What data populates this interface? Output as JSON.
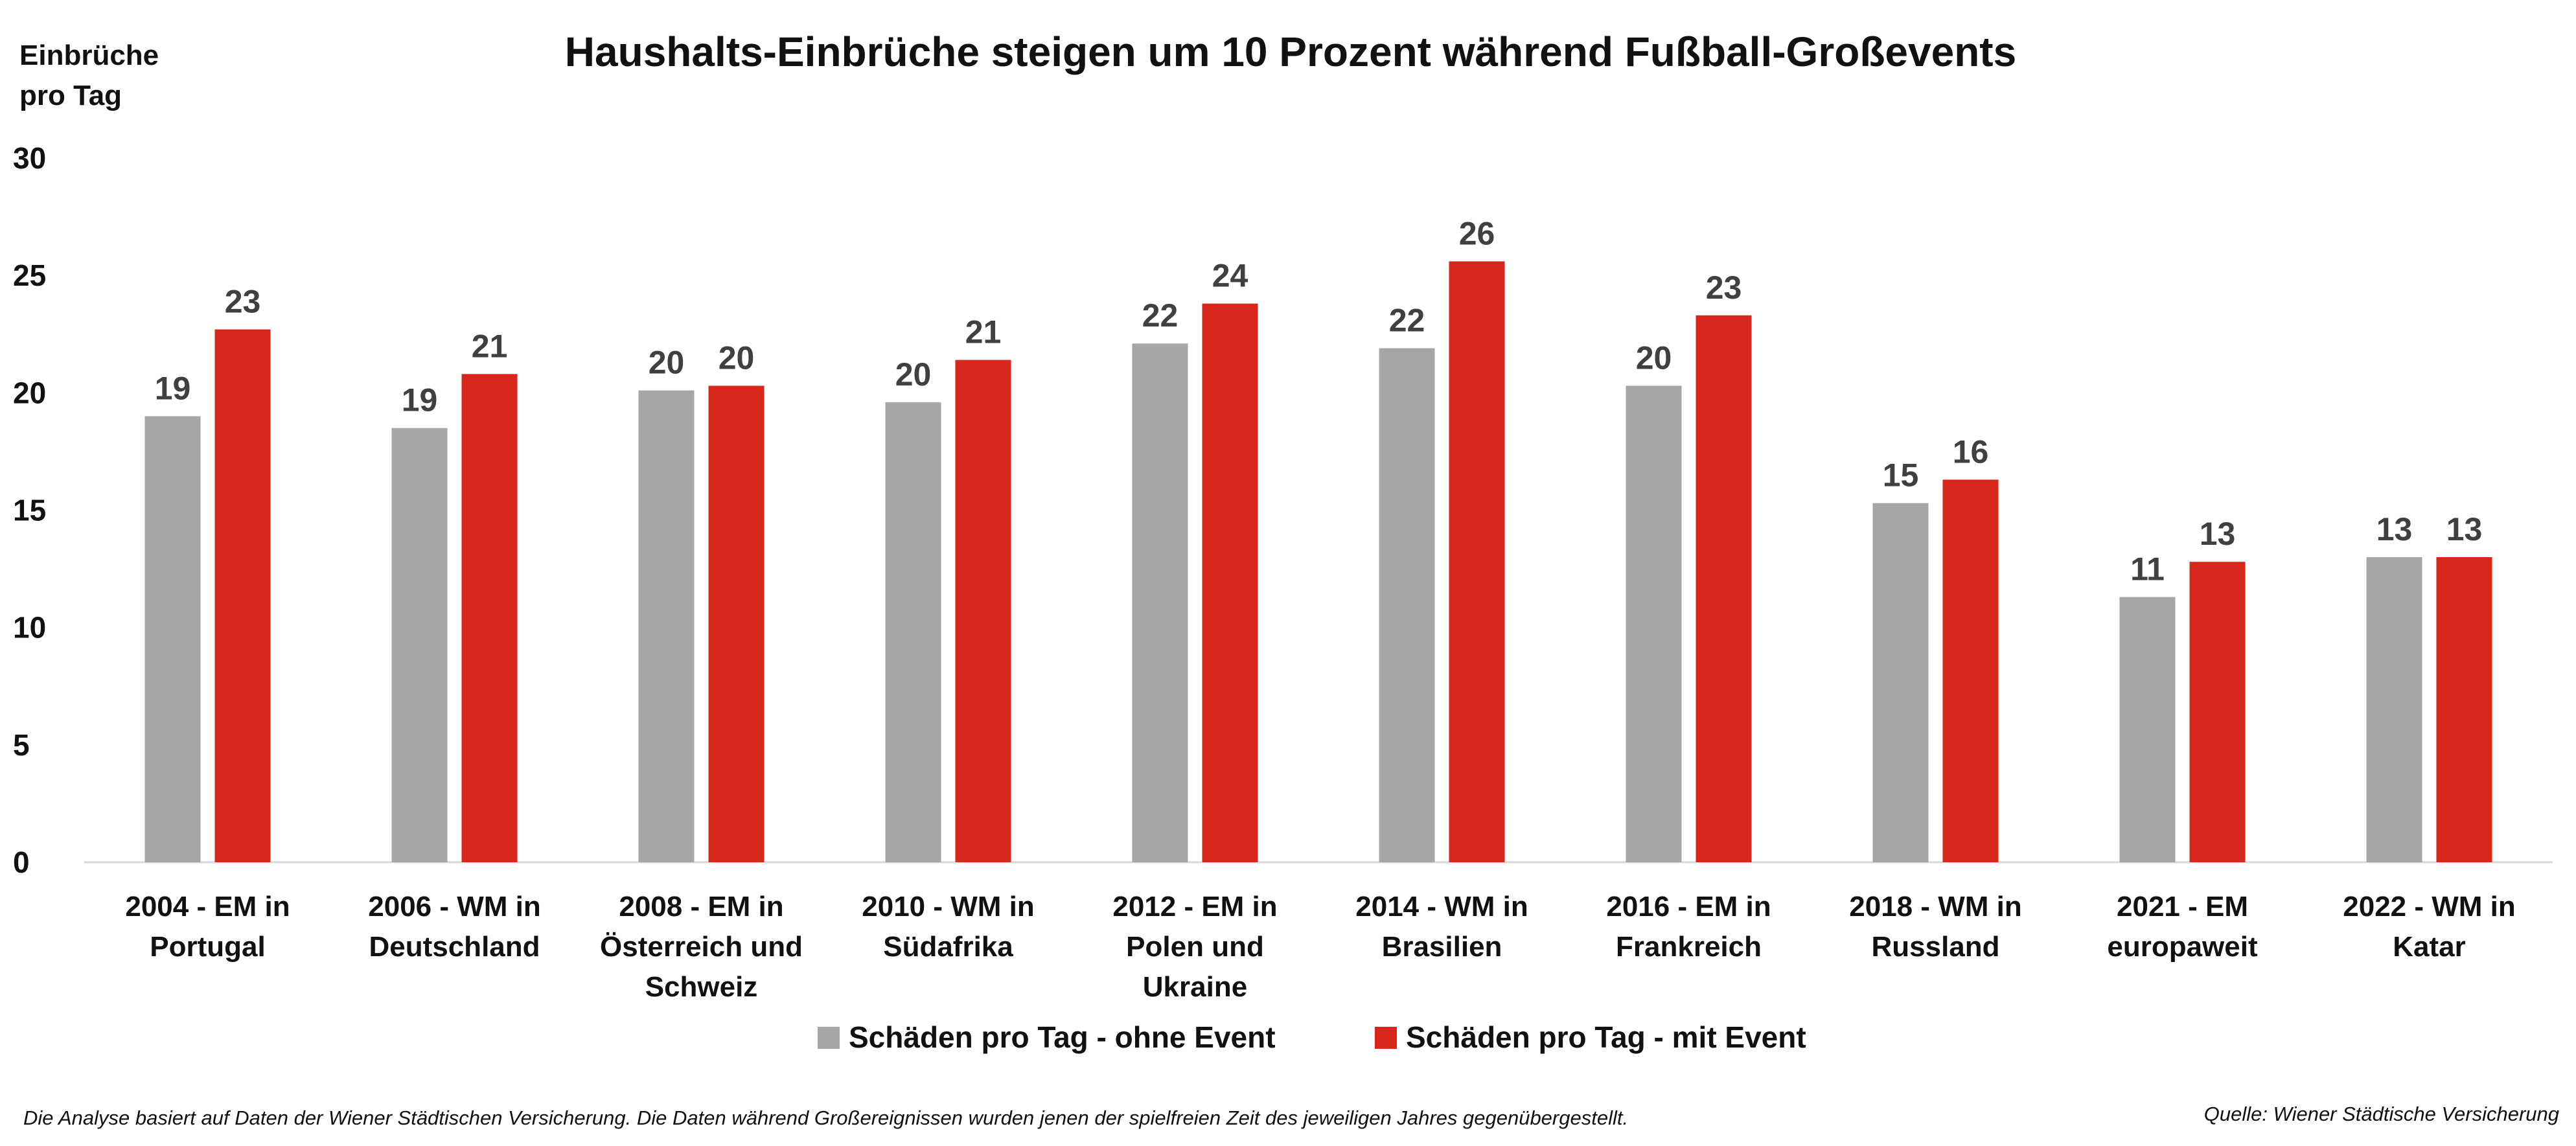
{
  "chart_data": {
    "type": "bar",
    "title": "Haushalts-Einbrüche steigen um 10 Prozent während Fußball-Großevents",
    "ylabel_lines": [
      "Einbrüche",
      "pro Tag"
    ],
    "xlabel": "",
    "ylim": [
      0,
      30
    ],
    "yticks": [
      0,
      5,
      10,
      15,
      20,
      25,
      30
    ],
    "grid": false,
    "legend_position": "bottom",
    "categories": [
      [
        "2004 - EM in",
        "Portugal"
      ],
      [
        "2006 - WM in",
        "Deutschland"
      ],
      [
        "2008 - EM in",
        "Österreich und",
        "Schweiz"
      ],
      [
        "2010 - WM in",
        "Südafrika"
      ],
      [
        "2012 - EM in",
        "Polen und",
        "Ukraine"
      ],
      [
        "2014 - WM in",
        "Brasilien"
      ],
      [
        "2016 - EM in",
        "Frankreich"
      ],
      [
        "2018 - WM in",
        "Russland"
      ],
      [
        "2021 - EM",
        "europaweit"
      ],
      [
        "2022 - WM in",
        "Katar"
      ]
    ],
    "series": [
      {
        "name": "Schäden pro Tag - ohne Event",
        "color": "#A6A6A6",
        "values": [
          19.0,
          18.5,
          20.1,
          19.6,
          22.1,
          21.9,
          20.3,
          15.3,
          11.3,
          13.0
        ],
        "labels": [
          "19",
          "19",
          "20",
          "20",
          "22",
          "22",
          "20",
          "15",
          "11",
          "13"
        ]
      },
      {
        "name": "Schäden pro Tag - mit Event",
        "color": "#D9261C",
        "values": [
          22.7,
          20.8,
          20.3,
          21.4,
          23.8,
          25.6,
          23.3,
          16.3,
          12.8,
          13.0
        ],
        "labels": [
          "23",
          "21",
          "20",
          "21",
          "24",
          "26",
          "23",
          "16",
          "13",
          "13"
        ]
      }
    ]
  },
  "footnote": "Die Analyse basiert auf Daten der Wiener Städtischen Versicherung. Die Daten während Großereignissen wurden jenen der spielfreien Zeit des jeweiligen Jahres gegenübergestellt.",
  "source": "Quelle: Wiener Städtische Versicherung"
}
